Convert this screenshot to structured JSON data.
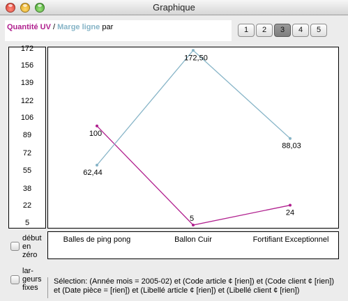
{
  "window": {
    "title": "Graphique"
  },
  "legend": {
    "series1": "Quantité UV",
    "separator": "/",
    "series2": "Marge ligne",
    "suffix": "par"
  },
  "pages": [
    {
      "label": "1",
      "active": false
    },
    {
      "label": "2",
      "active": false
    },
    {
      "label": "3",
      "active": true
    },
    {
      "label": "4",
      "active": false
    },
    {
      "label": "5",
      "active": false
    }
  ],
  "y_ticks": [
    "172",
    "156",
    "139",
    "122",
    "106",
    "89",
    "72",
    "55",
    "38",
    "22",
    "5"
  ],
  "categories": [
    "Balles de ping pong",
    "Ballon Cuir",
    "Fortifiant Exceptionnel"
  ],
  "options": {
    "debut_en_zero": "début en zéro",
    "largeurs_fixes": "lar- geurs fixes"
  },
  "selection": {
    "line1": "Sélection:  (Année mois = 2005-02) et (Code article ¢ [rien]) et (Code client ¢ [rien])",
    "line2": "et (Date pièce = [rien]) et (Libellé article ¢ [rien]) et (Libellé client ¢ [rien])"
  },
  "chart_data": {
    "type": "line",
    "categories": [
      "Balles de ping pong",
      "Ballon Cuir",
      "Fortifiant Exceptionnel"
    ],
    "series": [
      {
        "name": "Quantité UV",
        "color": "#b01f8e",
        "values": [
          100,
          5,
          24
        ],
        "labels": [
          "100",
          "5",
          "24"
        ]
      },
      {
        "name": "Marge ligne",
        "color": "#86b4c7",
        "values": [
          62.44,
          172.5,
          88.03
        ],
        "labels": [
          "62,44",
          "172,50",
          "88,03"
        ]
      }
    ],
    "ylim": [
      5,
      172
    ],
    "grid": false
  }
}
